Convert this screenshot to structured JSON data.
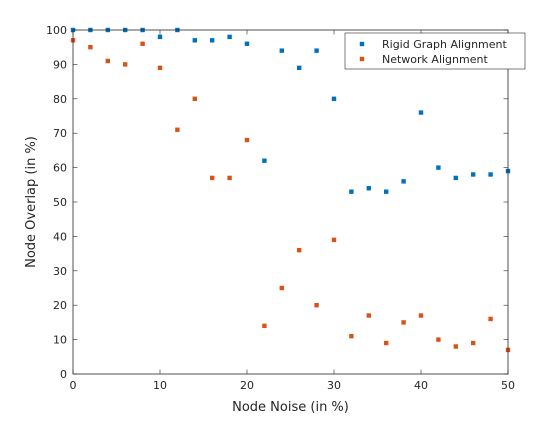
{
  "chart_data": {
    "type": "scatter",
    "xlabel": "Node Noise (in %)",
    "ylabel": "Node Overlap (in %)",
    "xlim": [
      0,
      50
    ],
    "ylim": [
      0,
      100
    ],
    "xticks": [
      "0",
      "10",
      "20",
      "30",
      "40",
      "50"
    ],
    "yticks": [
      "0",
      "10",
      "20",
      "30",
      "40",
      "50",
      "60",
      "70",
      "80",
      "90",
      "100"
    ],
    "grid": false,
    "legend_position": "top-right",
    "x": [
      0,
      2,
      4,
      6,
      8,
      10,
      12,
      14,
      16,
      18,
      20,
      22,
      24,
      26,
      28,
      30,
      32,
      34,
      36,
      38,
      40,
      42,
      44,
      46,
      48,
      50
    ],
    "series": [
      {
        "name": "Rigid Graph Alignment",
        "color": "#0072BD",
        "values": [
          100,
          100,
          100,
          100,
          100,
          98,
          100,
          97,
          97,
          98,
          96,
          62,
          94,
          89,
          94,
          80,
          53,
          54,
          53,
          56,
          76,
          60,
          57,
          58,
          58,
          59
        ]
      },
      {
        "name": "Network Alignment",
        "color": "#D95319",
        "values": [
          97,
          95,
          91,
          90,
          96,
          89,
          71,
          80,
          57,
          57,
          68,
          14,
          25,
          36,
          20,
          39,
          11,
          17,
          9,
          15,
          17,
          10,
          8,
          9,
          16,
          7
        ]
      }
    ]
  }
}
